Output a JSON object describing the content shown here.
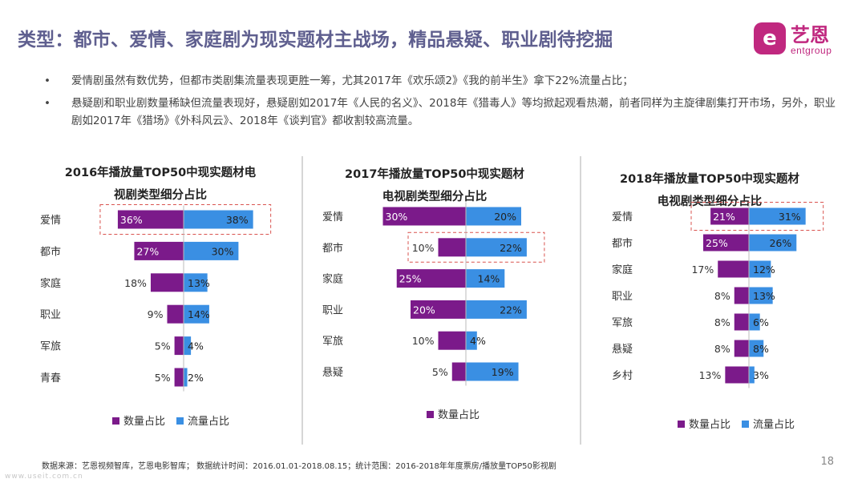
{
  "header": {
    "title": "类型：都市、爱情、家庭剧为现实题材主战场，精品悬疑、职业剧待挖掘",
    "logo_mark": "e",
    "logo_cn": "艺恩",
    "logo_en": "entgroup"
  },
  "bullets": [
    "爱情剧虽然有数优势，但都市类剧集流量表现更胜一筹，尤其2017年《欢乐颂2》《我的前半生》拿下22%流量占比；",
    "悬疑剧和职业剧数量稀缺但流量表现好，悬疑剧如2017年《人民的名义》、2018年《猎毒人》等均掀起观看热潮，前者同样为主旋律剧集打开市场，另外，职业剧如2017年《猎场》《外科风云》、2018年《谈判官》都收割较高流量。"
  ],
  "colors": {
    "count": "#7b1a8a",
    "flow": "#3a8fe3",
    "highlight": "#d9534f"
  },
  "legend": {
    "count": "数量占比",
    "flow": "流量占比"
  },
  "chart_data": [
    {
      "type": "bar",
      "title_lines": [
        "2016年播放量TOP50中现实题材电",
        "视剧类型细分占比"
      ],
      "categories": [
        "爱情",
        "都市",
        "家庭",
        "职业",
        "军旅",
        "青春"
      ],
      "series": [
        {
          "name": "数量占比",
          "values": [
            36,
            27,
            18,
            9,
            5,
            5
          ]
        },
        {
          "name": "流量占比",
          "values": [
            38,
            30,
            13,
            14,
            4,
            2
          ]
        }
      ],
      "unit": "%",
      "highlighted": [
        "爱情"
      ],
      "legend": [
        "数量占比",
        "流量占比"
      ]
    },
    {
      "type": "bar",
      "title_lines": [
        "2017年播放量TOP50中现实题材",
        "电视剧类型细分占比"
      ],
      "categories": [
        "爱情",
        "都市",
        "家庭",
        "职业",
        "军旅",
        "悬疑"
      ],
      "series": [
        {
          "name": "数量占比",
          "values": [
            30,
            10,
            25,
            20,
            10,
            5
          ]
        },
        {
          "name": "流量占比",
          "values": [
            20,
            22,
            14,
            22,
            4,
            19
          ]
        }
      ],
      "unit": "%",
      "highlighted": [
        "都市"
      ],
      "legend": [
        "数量占比"
      ]
    },
    {
      "type": "bar",
      "title_lines": [
        "2018年播放量TOP50中现实题材",
        "电视剧类型细分占比"
      ],
      "categories": [
        "爱情",
        "都市",
        "家庭",
        "职业",
        "军旅",
        "悬疑",
        "乡村"
      ],
      "series": [
        {
          "name": "数量占比",
          "values": [
            21,
            25,
            17,
            8,
            8,
            8,
            13
          ]
        },
        {
          "name": "流量占比",
          "values": [
            31,
            26,
            12,
            13,
            6,
            8,
            3
          ]
        }
      ],
      "unit": "%",
      "highlighted": [
        "爱情"
      ],
      "legend": [
        "数量占比",
        "流量占比"
      ]
    }
  ],
  "footer": {
    "source": "数据来源：艺恩视频智库，艺恩电影智库；  数据统计时间：2016.01.01-2018.08.15；统计范围：2016-2018年年度票房/播放量TOP50影视剧",
    "page": "18",
    "watermark": "www.useit.com.cn"
  }
}
